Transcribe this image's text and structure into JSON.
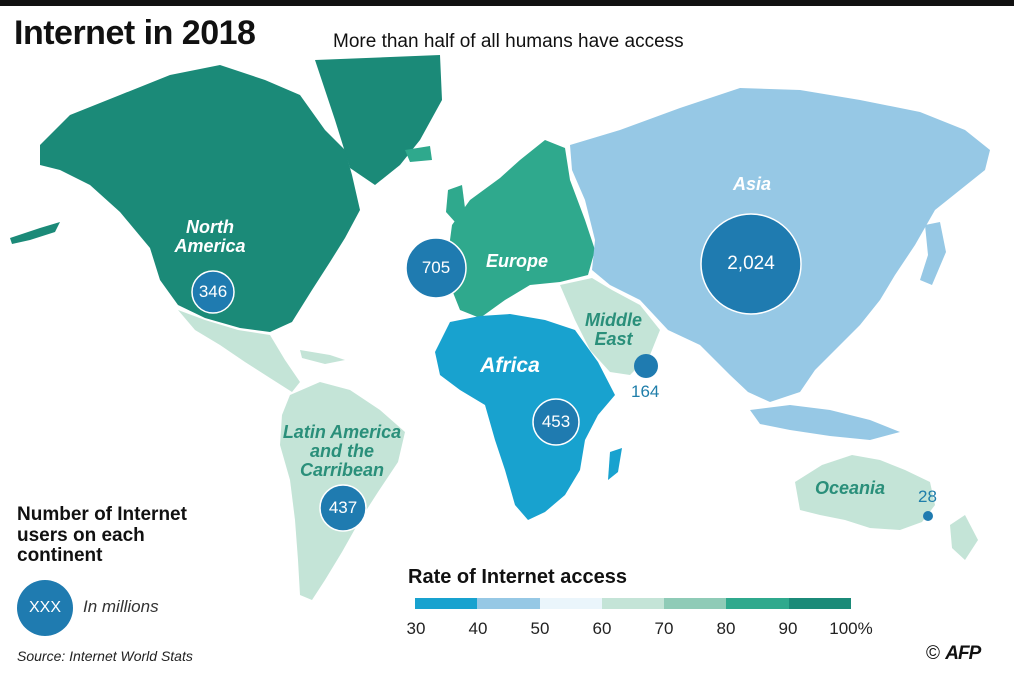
{
  "header": {
    "title": "Internet in 2018",
    "subtitle": "More than half of all humans have access"
  },
  "regions": [
    {
      "name": "North America",
      "users_millions": "346",
      "fill": "#1b8a78"
    },
    {
      "name": "Europe",
      "users_millions": "705",
      "fill": "#2fa98d"
    },
    {
      "name": "Africa",
      "users_millions": "453",
      "fill": "#18a2cf"
    },
    {
      "name": "Middle East",
      "users_millions": "164",
      "fill": "#c4e4d7"
    },
    {
      "name": "Asia",
      "users_millions": "2,024",
      "fill": "#96c8e5"
    },
    {
      "name": "Latin America and the Carribean",
      "users_millions": "437",
      "fill": "#c4e4d7"
    },
    {
      "name": "Oceania",
      "users_millions": "28",
      "fill": "#c4e4d7"
    }
  ],
  "bubble_color": "#1f7bb0",
  "legend": {
    "title": "Number of Internet users on each continent",
    "sample": "XXX",
    "unit": "In millions"
  },
  "scale": {
    "title": "Rate of Internet access",
    "ticks": [
      "30",
      "40",
      "50",
      "60",
      "70",
      "80",
      "90",
      "100%"
    ],
    "colors": [
      "#18a2cf",
      "#96c8e5",
      "#eaf5fb",
      "#c4e4d7",
      "#8fcbb7",
      "#2fa98d",
      "#1b8a78"
    ]
  },
  "source": "Source: Internet World Stats",
  "credit": {
    "symbol": "©",
    "agency": "AFP"
  }
}
